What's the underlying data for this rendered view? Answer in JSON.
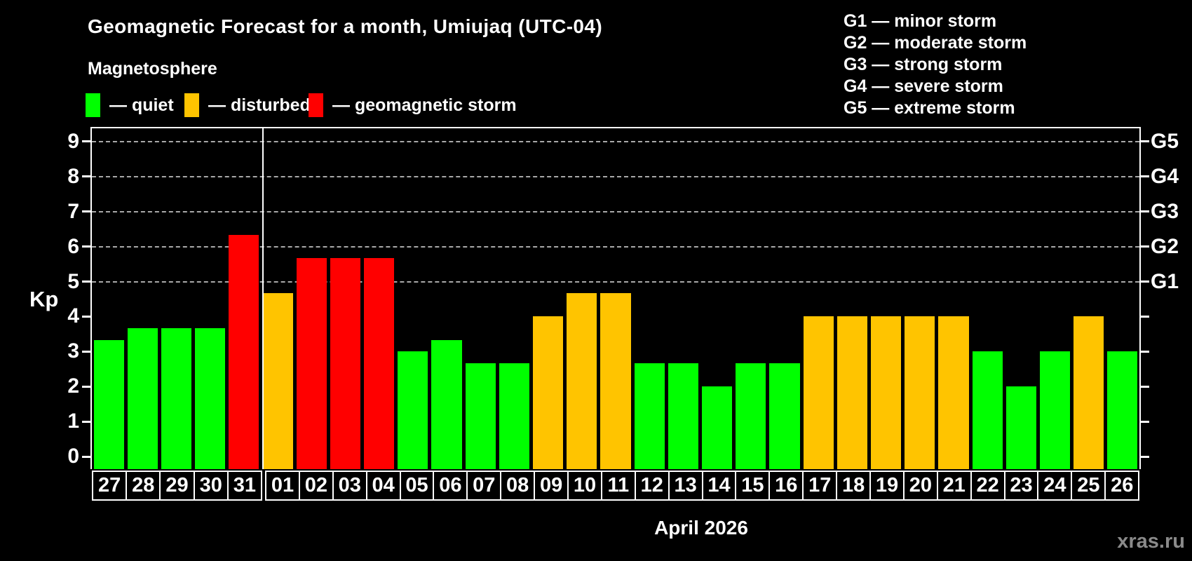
{
  "title": "Geomagnetic Forecast for a month, Umiujaq (UTC-04)",
  "subtitle": "Magnetosphere",
  "legend": {
    "items": [
      {
        "key": "quiet",
        "label": "— quiet",
        "color": "#00ff00"
      },
      {
        "key": "disturbed",
        "label": "— disturbed",
        "color": "#ffc400"
      },
      {
        "key": "storm",
        "label": "— geomagnetic storm",
        "color": "#ff0000"
      }
    ]
  },
  "gscale_legend": [
    "G1 — minor storm",
    "G2 — moderate storm",
    "G3 — strong storm",
    "G4 — severe storm",
    "G5 — extreme storm"
  ],
  "watermark": "xras.ru",
  "chart_data": {
    "type": "bar",
    "title": "Geomagnetic Forecast for a month, Umiujaq (UTC-04)",
    "xlabel": "April 2026",
    "ylabel": "Kp",
    "ylim": [
      0,
      9
    ],
    "y_ticks": [
      0,
      1,
      2,
      3,
      4,
      5,
      6,
      7,
      8,
      9
    ],
    "gridlines_at": [
      5,
      6,
      7,
      8,
      9
    ],
    "grid": "dashed, only at G-storm levels 5-9",
    "legend_position": "top-left",
    "right_axis_labels": [
      {
        "value": 5,
        "label": "G1"
      },
      {
        "value": 6,
        "label": "G2"
      },
      {
        "value": 7,
        "label": "G3"
      },
      {
        "value": 8,
        "label": "G4"
      },
      {
        "value": 9,
        "label": "G5"
      }
    ],
    "month_boundary_after_index": 4,
    "categories": [
      "27",
      "28",
      "29",
      "30",
      "31",
      "01",
      "02",
      "03",
      "04",
      "05",
      "06",
      "07",
      "08",
      "09",
      "10",
      "11",
      "12",
      "13",
      "14",
      "15",
      "16",
      "17",
      "18",
      "19",
      "20",
      "21",
      "22",
      "23",
      "24",
      "25",
      "26"
    ],
    "values": [
      3.33,
      3.67,
      3.67,
      3.67,
      6.33,
      4.67,
      5.67,
      5.67,
      5.67,
      3,
      3.33,
      2.67,
      2.67,
      4,
      4.67,
      4.67,
      2.67,
      2.67,
      2,
      2.67,
      2.67,
      4,
      4,
      4,
      4,
      4,
      3,
      2,
      3,
      4,
      3
    ],
    "statuses": [
      "quiet",
      "quiet",
      "quiet",
      "quiet",
      "storm",
      "disturbed",
      "storm",
      "storm",
      "storm",
      "quiet",
      "quiet",
      "quiet",
      "quiet",
      "disturbed",
      "disturbed",
      "disturbed",
      "quiet",
      "quiet",
      "quiet",
      "quiet",
      "quiet",
      "disturbed",
      "disturbed",
      "disturbed",
      "disturbed",
      "disturbed",
      "quiet",
      "quiet",
      "quiet",
      "disturbed",
      "quiet"
    ],
    "colors_by_status": {
      "quiet": "#00ff00",
      "disturbed": "#ffc400",
      "storm": "#ff0000"
    }
  }
}
